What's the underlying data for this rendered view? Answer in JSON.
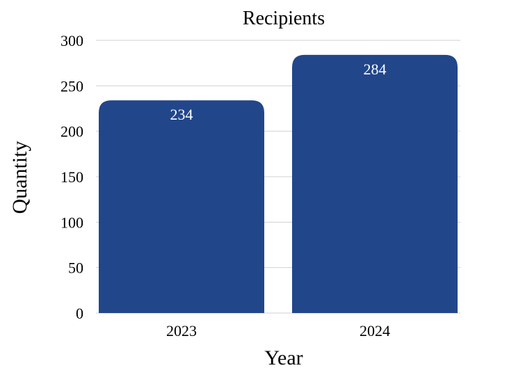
{
  "chart_data": {
    "type": "bar",
    "title": "Recipients",
    "xlabel": "Year",
    "ylabel": "Quantity",
    "categories": [
      "2023",
      "2024"
    ],
    "values": [
      234,
      284
    ],
    "data_labels": [
      "234",
      "284"
    ],
    "ylim": [
      0,
      300
    ],
    "yticks": [
      0,
      50,
      100,
      150,
      200,
      250,
      300
    ],
    "ytick_labels": [
      "0",
      "50",
      "100",
      "150",
      "200",
      "250",
      "300"
    ],
    "grid": true,
    "legend": false,
    "bar_color": "#22468a",
    "label_color": "#ffffff"
  }
}
